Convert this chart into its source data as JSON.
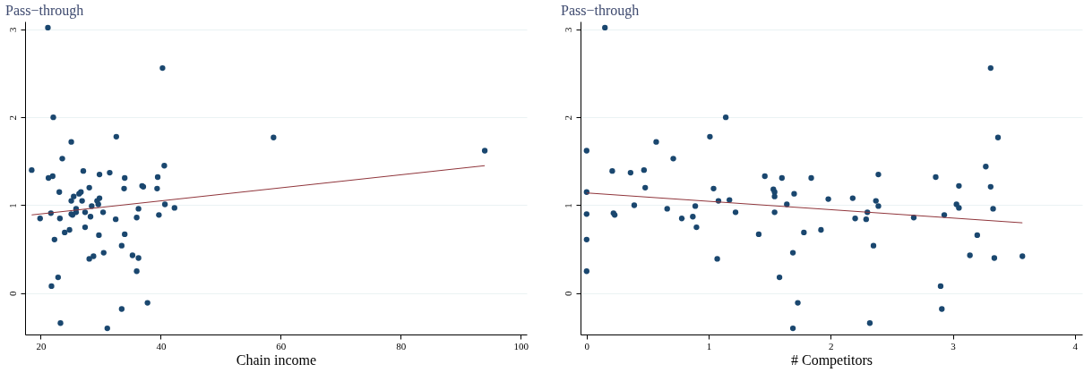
{
  "chart_data": [
    {
      "type": "scatter",
      "ylabel": "Pass−through",
      "xlabel": "Chain income",
      "xlim": [
        17.4,
        101
      ],
      "xticks": [
        20,
        40,
        60,
        80,
        100
      ],
      "ylim": [
        -0.47,
        3.09
      ],
      "yticks": [
        0,
        1,
        2,
        3
      ],
      "grid": "y",
      "series": [
        {
          "marker": "circle",
          "color": "#1a476f",
          "x": [
            21.2,
            40.3,
            22.1,
            32.6,
            25.1,
            23.6,
            18.5,
            40.6,
            27.1,
            21.3,
            22.0,
            29.8,
            31.5,
            34.0,
            39.5,
            23.1,
            26.7,
            26.4,
            28.1,
            25.5,
            33.9,
            36.9,
            37.1,
            39.4,
            25.1,
            26.9,
            29.8,
            29.4,
            28.5,
            29.6,
            40.7,
            42.3,
            25.9,
            36.3,
            21.7,
            27.4,
            25.1,
            25.3,
            25.9,
            30.4,
            19.9,
            23.2,
            28.3,
            32.5,
            36.0,
            39.7,
            27.4,
            24.8,
            24.0,
            29.7,
            34.0,
            22.3,
            33.5,
            30.5,
            35.3,
            28.8,
            28.1,
            36.3,
            36.0,
            22.9,
            21.8,
            37.8,
            33.5,
            23.3,
            31.1,
            58.8,
            94.0
          ],
          "values": [
            3.02,
            2.56,
            2.0,
            1.78,
            1.72,
            1.53,
            1.4,
            1.45,
            1.39,
            1.31,
            1.33,
            1.35,
            1.37,
            1.31,
            1.32,
            1.15,
            1.15,
            1.13,
            1.2,
            1.1,
            1.19,
            1.22,
            1.21,
            1.19,
            1.05,
            1.05,
            1.08,
            1.05,
            0.99,
            1.01,
            1.01,
            0.97,
            0.96,
            0.96,
            0.91,
            0.92,
            0.9,
            0.89,
            0.92,
            0.92,
            0.85,
            0.85,
            0.87,
            0.84,
            0.86,
            0.89,
            0.75,
            0.72,
            0.69,
            0.66,
            0.67,
            0.61,
            0.54,
            0.46,
            0.43,
            0.42,
            0.39,
            0.4,
            0.25,
            0.18,
            0.08,
            -0.11,
            -0.18,
            -0.34,
            -0.4,
            1.77,
            1.62
          ]
        },
        {
          "type": "line",
          "color": "#90353b",
          "x": [
            18.5,
            94.0
          ],
          "values": [
            0.89,
            1.45
          ]
        }
      ]
    },
    {
      "type": "scatter",
      "ylabel": "Pass−through",
      "xlabel": "# Competitors",
      "xlim": [
        -0.05,
        4.06
      ],
      "xticks": [
        0,
        1,
        2,
        3,
        4
      ],
      "ylim": [
        -0.47,
        3.09
      ],
      "yticks": [
        0,
        1,
        2,
        3
      ],
      "grid": "y",
      "series": [
        {
          "marker": "circle",
          "color": "#1a476f",
          "x": [
            0.15,
            1.14,
            1.01,
            0,
            0.57,
            0.71,
            0.21,
            0.36,
            0.47,
            0.48,
            0,
            0.39,
            0,
            0.22,
            0.23,
            0.66,
            0.78,
            0.87,
            0.89,
            0.9,
            0,
            0,
            1.04,
            1.08,
            1.17,
            1.22,
            1.07,
            1.41,
            1.46,
            1.53,
            1.54,
            1.54,
            1.6,
            1.54,
            1.64,
            1.7,
            1.78,
            1.69,
            1.58,
            1.73,
            1.69,
            1.84,
            1.92,
            1.98,
            2.18,
            2.2,
            2.29,
            2.3,
            2.32,
            2.35,
            2.37,
            2.39,
            2.39,
            2.68,
            2.86,
            2.9,
            2.91,
            2.93,
            3.03,
            3.05,
            3.05,
            3.14,
            3.2,
            3.27,
            3.31,
            3.31,
            3.33,
            3.34,
            3.37,
            3.57
          ],
          "values": [
            3.02,
            2.0,
            1.78,
            1.62,
            1.72,
            1.53,
            1.39,
            1.37,
            1.4,
            1.2,
            1.15,
            1.0,
            0.9,
            0.91,
            0.89,
            0.96,
            0.85,
            0.87,
            0.99,
            0.75,
            0.61,
            0.25,
            1.19,
            1.05,
            1.06,
            0.92,
            0.39,
            0.67,
            1.33,
            1.18,
            1.15,
            1.1,
            1.31,
            0.92,
            1.01,
            1.13,
            0.69,
            0.46,
            0.18,
            -0.11,
            -0.4,
            1.31,
            0.72,
            1.07,
            1.08,
            0.85,
            0.84,
            0.92,
            -0.34,
            0.54,
            1.05,
            1.35,
            0.99,
            0.86,
            1.32,
            0.08,
            -0.18,
            0.89,
            1.01,
            1.22,
            0.97,
            0.43,
            0.66,
            1.44,
            1.21,
            2.56,
            0.96,
            0.4,
            1.77,
            0.42
          ]
        },
        {
          "type": "line",
          "color": "#90353b",
          "x": [
            0,
            3.57
          ],
          "values": [
            1.14,
            0.8
          ]
        }
      ]
    }
  ]
}
